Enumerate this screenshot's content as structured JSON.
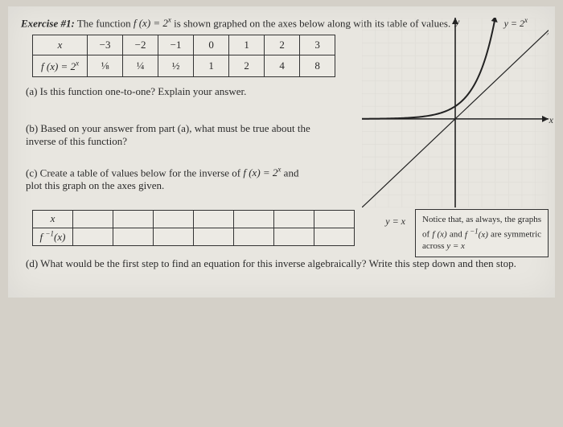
{
  "exercise_label": "Exercise #1:",
  "title_text_1": "The function ",
  "func_def": "f (x) = 2",
  "func_exp": "x",
  "title_text_2": " is shown graphed on the axes below along with its table of values.",
  "table_values": {
    "row_x_label": "x",
    "row_f_label": "f (x) = 2",
    "row_f_label_exp": "x",
    "x_vals": [
      "−3",
      "−2",
      "−1",
      "0",
      "1",
      "2",
      "3"
    ],
    "f_vals": [
      "⅛",
      "¼",
      "½",
      "1",
      "2",
      "4",
      "8"
    ]
  },
  "q_a": "(a) Is this function one-to-one?  Explain your answer.",
  "q_b": "(b) Based on your answer from part (a), what must be true about the inverse of this function?",
  "q_c_1": "(c) Create a table of values below for the inverse of ",
  "q_c_func": "f (x) = 2",
  "q_c_exp": "x",
  "q_c_2": " and plot this graph on the axes given.",
  "blank_table": {
    "row1_label": "x",
    "row2_label": "f ",
    "row2_sup": "−1",
    "row2_tail": "(x)",
    "cols": 7
  },
  "q_d": "(d) What would be the first step to find an equation for this inverse algebraically?  Write this step down and then stop.",
  "graph": {
    "y_label": "y",
    "curve_label": "y = 2",
    "curve_label_exp": "x",
    "x_label": "x",
    "yx_line_label": "y = x",
    "grid_color": "#e0ded8",
    "axis_color": "#222",
    "curve_color": "#222",
    "line_color": "#222",
    "xlim": [
      -7,
      7
    ],
    "ylim": [
      -7,
      8
    ]
  },
  "note": {
    "l1": "Notice that, as always, the graphs of ",
    "fx": "f (x)",
    "and": " and ",
    "finvx_a": "f ",
    "finvx_sup": "−1",
    "finvx_b": "(x)",
    "l2": " are symmetric across ",
    "yx": "y = x"
  }
}
